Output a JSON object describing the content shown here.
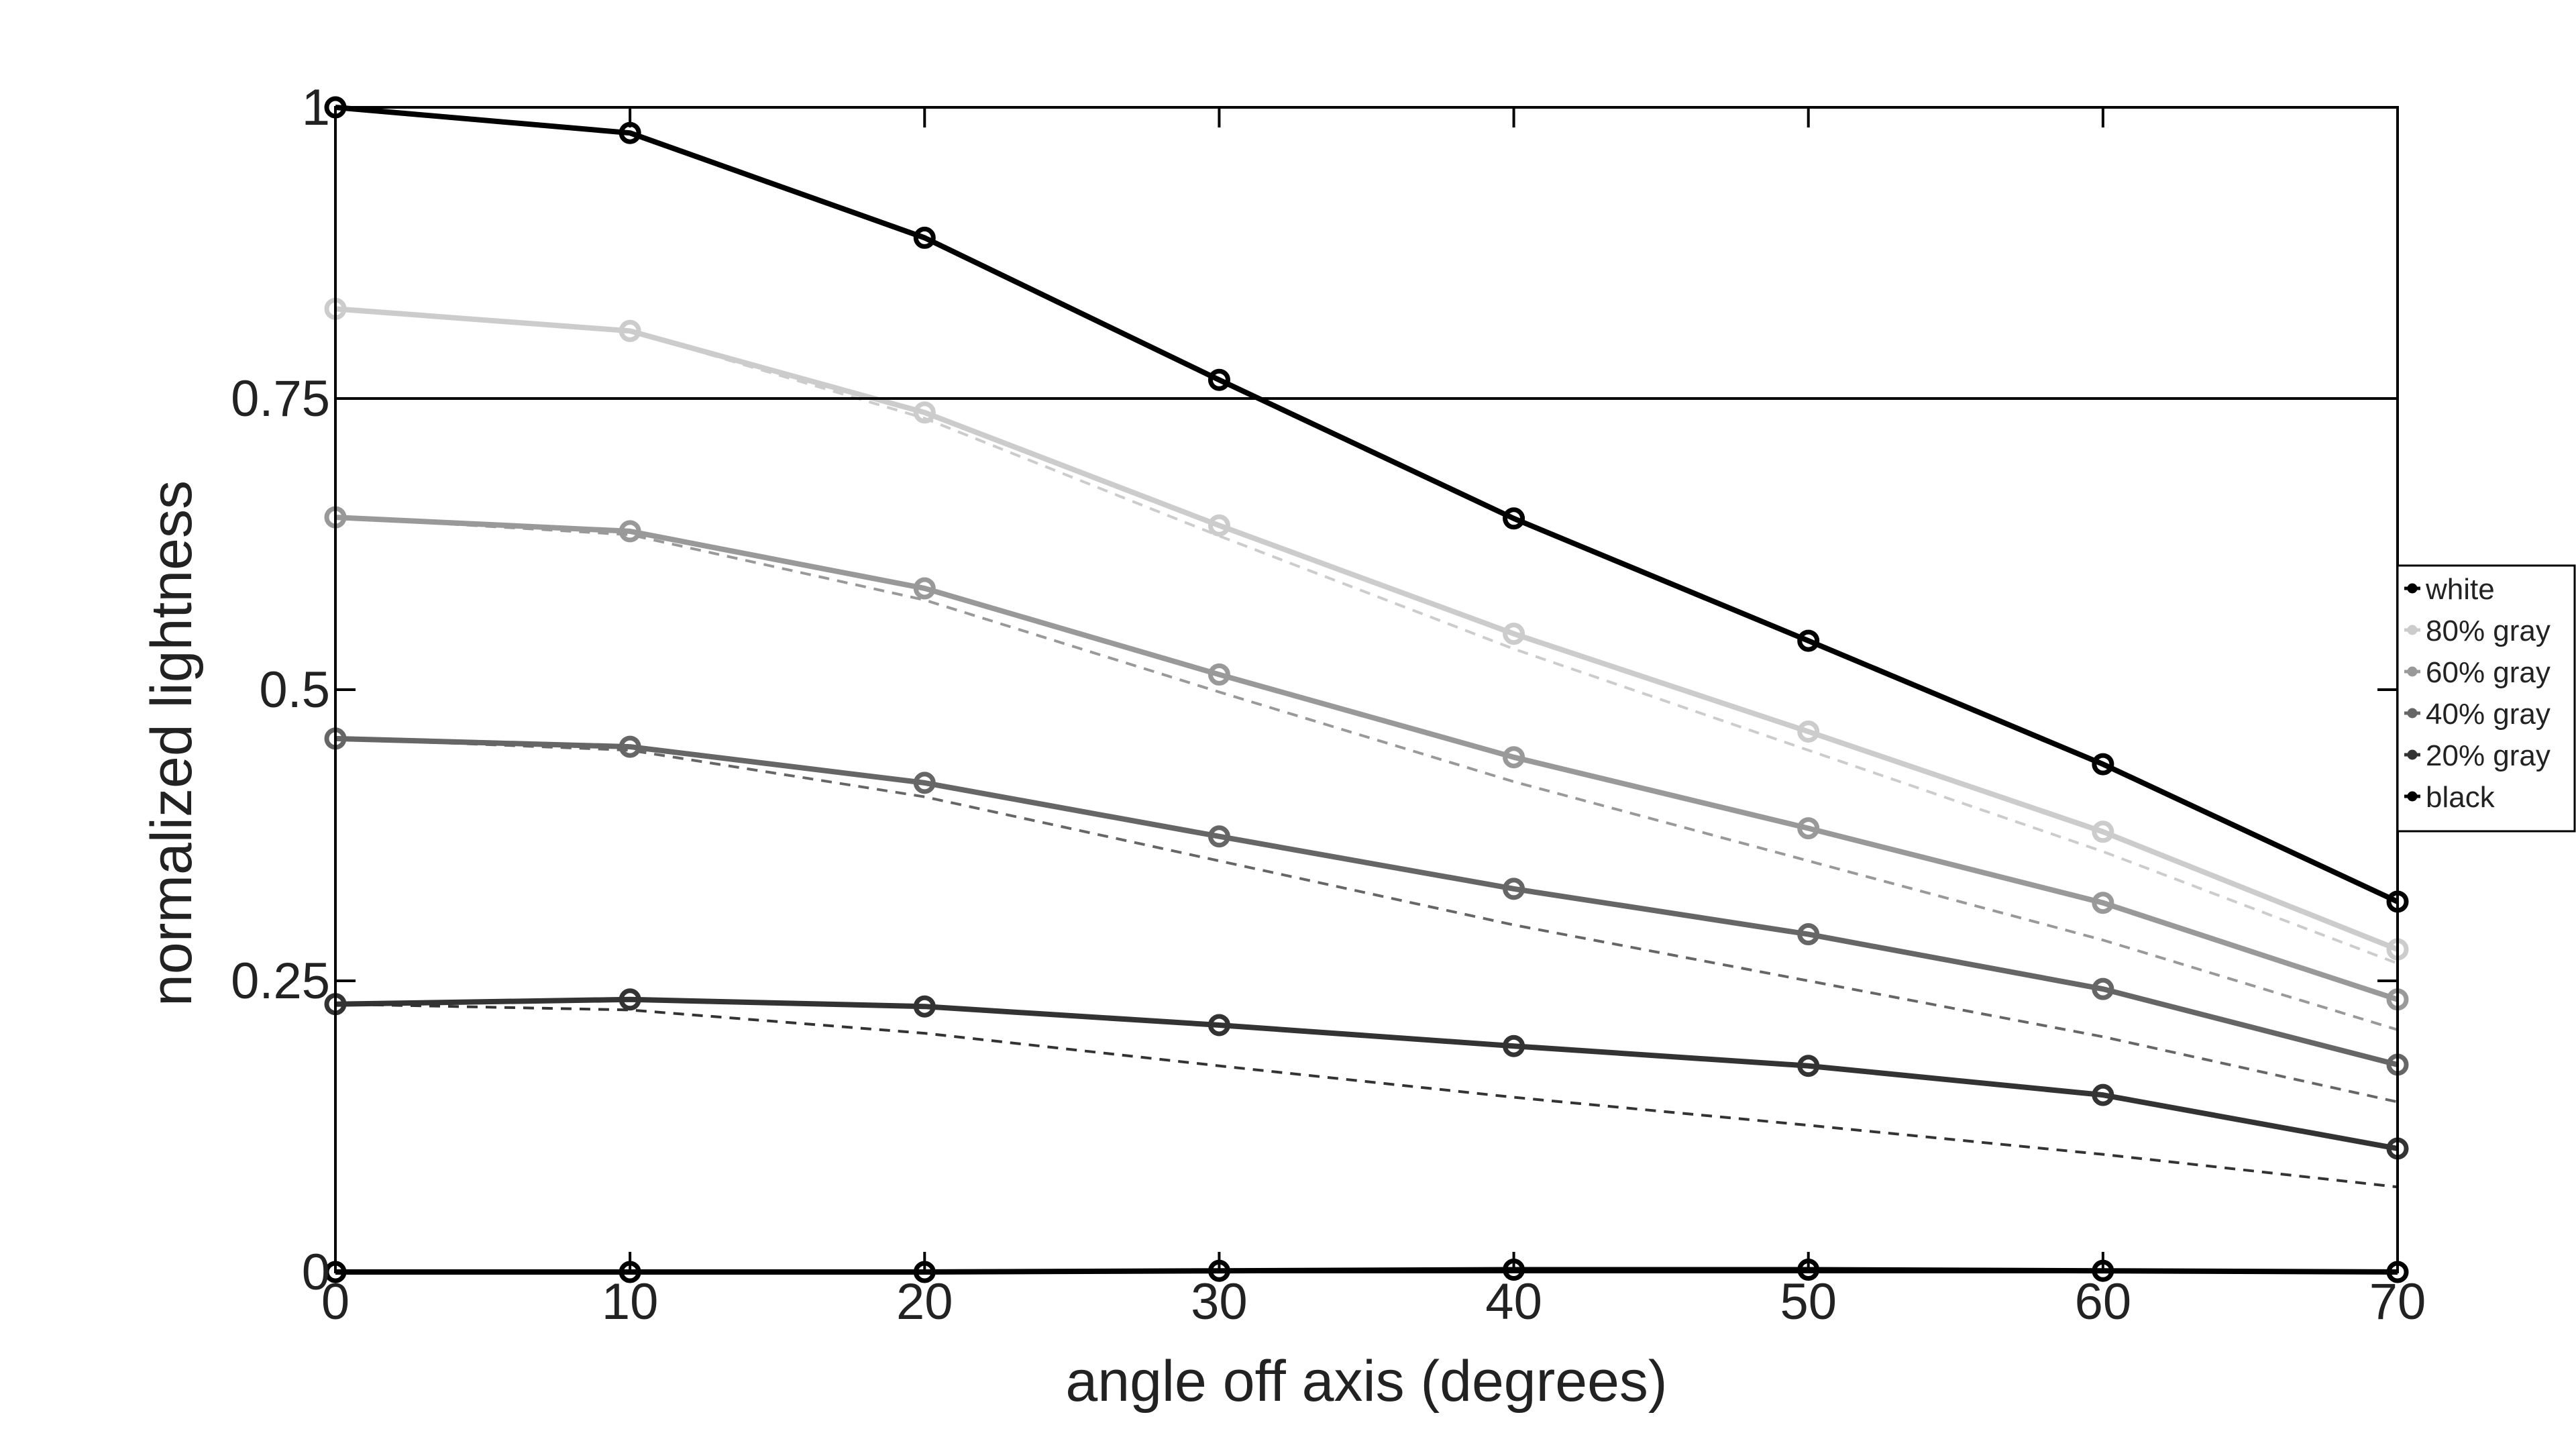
{
  "chart_data": {
    "type": "line",
    "xlabel": "angle off axis (degrees)",
    "ylabel": "normalized lightness",
    "xlim": [
      0,
      70
    ],
    "ylim": [
      0,
      1
    ],
    "x_ticks": [
      0,
      10,
      20,
      30,
      40,
      50,
      60,
      70
    ],
    "y_ticks": [
      {
        "value": 0,
        "label": "0"
      },
      {
        "value": 0.25,
        "label": "0.25"
      },
      {
        "value": 0.5,
        "label": "0.5"
      },
      {
        "value": 0.75,
        "label": "0.75"
      },
      {
        "value": 1,
        "label": "1"
      }
    ],
    "grid": false,
    "legend_position": "right",
    "x": [
      0,
      10,
      20,
      30,
      40,
      50,
      60,
      70
    ],
    "reference_line": 0.75,
    "series": [
      {
        "name": "white",
        "color": "#000000",
        "values": [
          1.0,
          0.978,
          0.888,
          0.766,
          0.647,
          0.542,
          0.436,
          0.318
        ]
      },
      {
        "name": "80% gray",
        "color": "#cccccc",
        "values": [
          0.827,
          0.808,
          0.738,
          0.641,
          0.548,
          0.464,
          0.378,
          0.277
        ],
        "dashed": [
          0.827,
          0.808,
          0.733,
          0.632,
          0.535,
          0.448,
          0.361,
          0.265
        ]
      },
      {
        "name": "60% gray",
        "color": "#999999",
        "values": [
          0.648,
          0.636,
          0.587,
          0.513,
          0.442,
          0.381,
          0.317,
          0.234
        ],
        "dashed": [
          0.648,
          0.633,
          0.577,
          0.498,
          0.421,
          0.353,
          0.285,
          0.208
        ]
      },
      {
        "name": "40% gray",
        "color": "#666666",
        "values": [
          0.458,
          0.451,
          0.42,
          0.374,
          0.329,
          0.29,
          0.243,
          0.178
        ],
        "dashed": [
          0.458,
          0.448,
          0.408,
          0.353,
          0.298,
          0.25,
          0.202,
          0.146
        ]
      },
      {
        "name": "20% gray",
        "color": "#333333",
        "values": [
          0.23,
          0.234,
          0.228,
          0.212,
          0.194,
          0.177,
          0.152,
          0.106
        ],
        "dashed": [
          0.23,
          0.225,
          0.205,
          0.177,
          0.15,
          0.126,
          0.101,
          0.073
        ]
      },
      {
        "name": "black",
        "color": "#000000",
        "values": [
          0.0,
          0.0,
          0.0,
          0.001,
          0.002,
          0.002,
          0.001,
          0.0
        ]
      }
    ]
  }
}
